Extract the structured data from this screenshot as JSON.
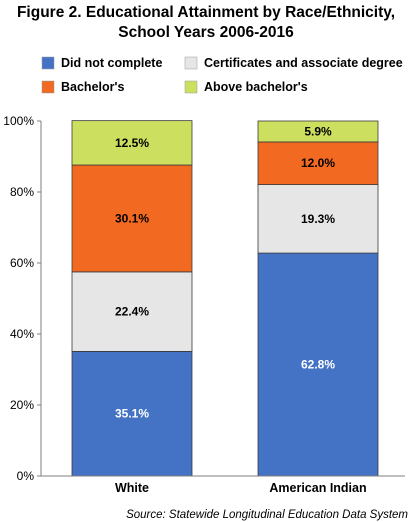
{
  "chart_data": {
    "type": "bar",
    "stacked": true,
    "normalized": true,
    "title_line1": "Figure 2. Educational Attainment by Race/Ethnicity,",
    "title_line2": "School Years 2006-2016",
    "categories": [
      "White",
      "American Indian"
    ],
    "series": [
      {
        "name": "Did not complete",
        "color": "#4472C4",
        "values": [
          35.1,
          62.8
        ],
        "label_color": "#ffffff"
      },
      {
        "name": "Certificates and associate  degree",
        "color": "#E7E6E6",
        "values": [
          22.4,
          19.3
        ],
        "label_color": "#000000"
      },
      {
        "name": "Bachelor's",
        "color": "#F26A22",
        "values": [
          30.1,
          12.0
        ],
        "label_color": "#000000"
      },
      {
        "name": "Above bachelor's",
        "color": "#CCDF5E",
        "values": [
          12.5,
          5.9
        ],
        "label_color": "#000000"
      }
    ],
    "value_labels": [
      [
        "35.1%",
        "62.8%"
      ],
      [
        "22.4%",
        "19.3%"
      ],
      [
        "30.1%",
        "12.0%"
      ],
      [
        "12.5%",
        "5.9%"
      ]
    ],
    "ylim": [
      0,
      100
    ],
    "yticks": [
      "0%",
      "20%",
      "40%",
      "60%",
      "80%",
      "100%"
    ],
    "ytick_values": [
      0,
      20,
      40,
      60,
      80,
      100
    ],
    "grid": false,
    "legend_position": "top",
    "source": "Source: Statewide Longitudinal Education Data System"
  }
}
